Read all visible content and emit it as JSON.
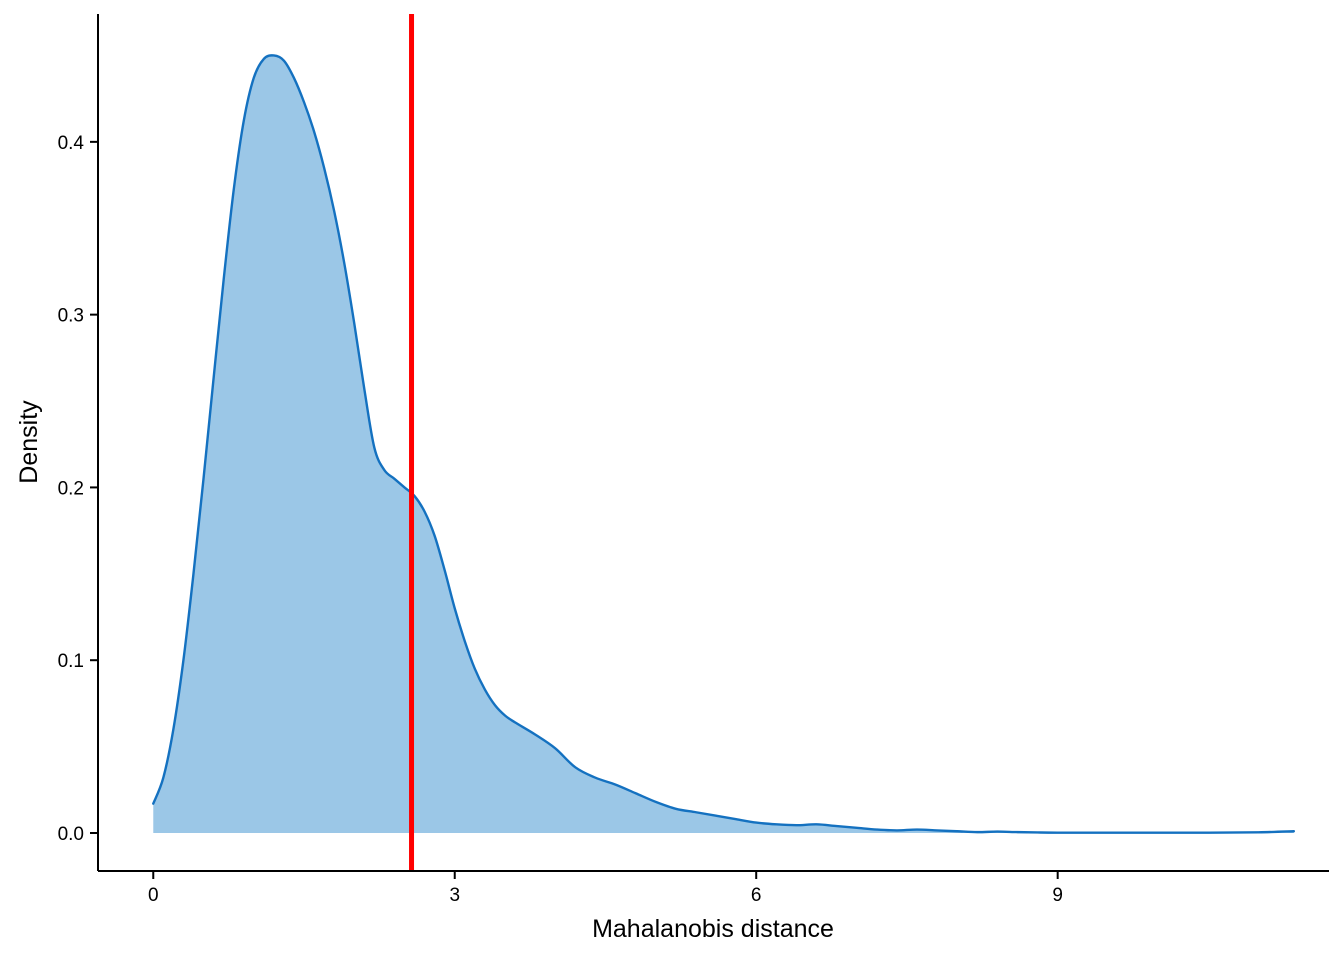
{
  "chart_data": {
    "type": "area",
    "title": "",
    "xlabel": "Mahalanobis distance",
    "ylabel": "Density",
    "xlim": [
      -0.55,
      11.7
    ],
    "ylim": [
      -0.022,
      0.474
    ],
    "x_ticks": [
      0,
      3,
      6,
      9
    ],
    "y_ticks": [
      0.0,
      0.1,
      0.2,
      0.3,
      0.4
    ],
    "y_tick_labels": [
      "0.0",
      "0.1",
      "0.2",
      "0.3",
      "0.4"
    ],
    "x_tick_labels": [
      "0",
      "3",
      "6",
      "9"
    ],
    "grid": false,
    "legend": "none",
    "series": [
      {
        "x": [
          0.0,
          0.1,
          0.2,
          0.3,
          0.4,
          0.5,
          0.6,
          0.7,
          0.8,
          0.9,
          1.0,
          1.1,
          1.2,
          1.3,
          1.4,
          1.5,
          1.6,
          1.7,
          1.8,
          1.9,
          2.0,
          2.1,
          2.2,
          2.3,
          2.4,
          2.5,
          2.6,
          2.7,
          2.8,
          2.9,
          3.0,
          3.1,
          3.2,
          3.3,
          3.4,
          3.5,
          3.6,
          3.8,
          4.0,
          4.2,
          4.4,
          4.6,
          4.8,
          5.0,
          5.2,
          5.4,
          5.6,
          5.8,
          6.0,
          6.2,
          6.4,
          6.6,
          6.8,
          7.0,
          7.2,
          7.4,
          7.6,
          7.8,
          8.0,
          8.2,
          8.4,
          8.6,
          8.8,
          9.0,
          9.5,
          10.0,
          10.5,
          11.0,
          11.35
        ],
        "y": [
          0.017,
          0.032,
          0.06,
          0.1,
          0.15,
          0.205,
          0.263,
          0.32,
          0.372,
          0.412,
          0.437,
          0.448,
          0.45,
          0.447,
          0.437,
          0.423,
          0.406,
          0.385,
          0.36,
          0.33,
          0.295,
          0.257,
          0.223,
          0.21,
          0.205,
          0.2,
          0.195,
          0.186,
          0.172,
          0.152,
          0.13,
          0.111,
          0.095,
          0.083,
          0.074,
          0.068,
          0.064,
          0.057,
          0.049,
          0.038,
          0.032,
          0.028,
          0.023,
          0.018,
          0.014,
          0.012,
          0.01,
          0.008,
          0.006,
          0.005,
          0.0045,
          0.005,
          0.004,
          0.003,
          0.002,
          0.0015,
          0.002,
          0.0015,
          0.001,
          0.0005,
          0.0008,
          0.0005,
          0.0003,
          0.0002,
          0.0002,
          0.0002,
          0.0002,
          0.0004,
          0.001
        ]
      }
    ],
    "vline": {
      "x": 2.57
    },
    "colors": {
      "fill": "#9bc7e7",
      "line": "#1471c0",
      "vline": "#ff0000",
      "axis": "#000000"
    }
  }
}
